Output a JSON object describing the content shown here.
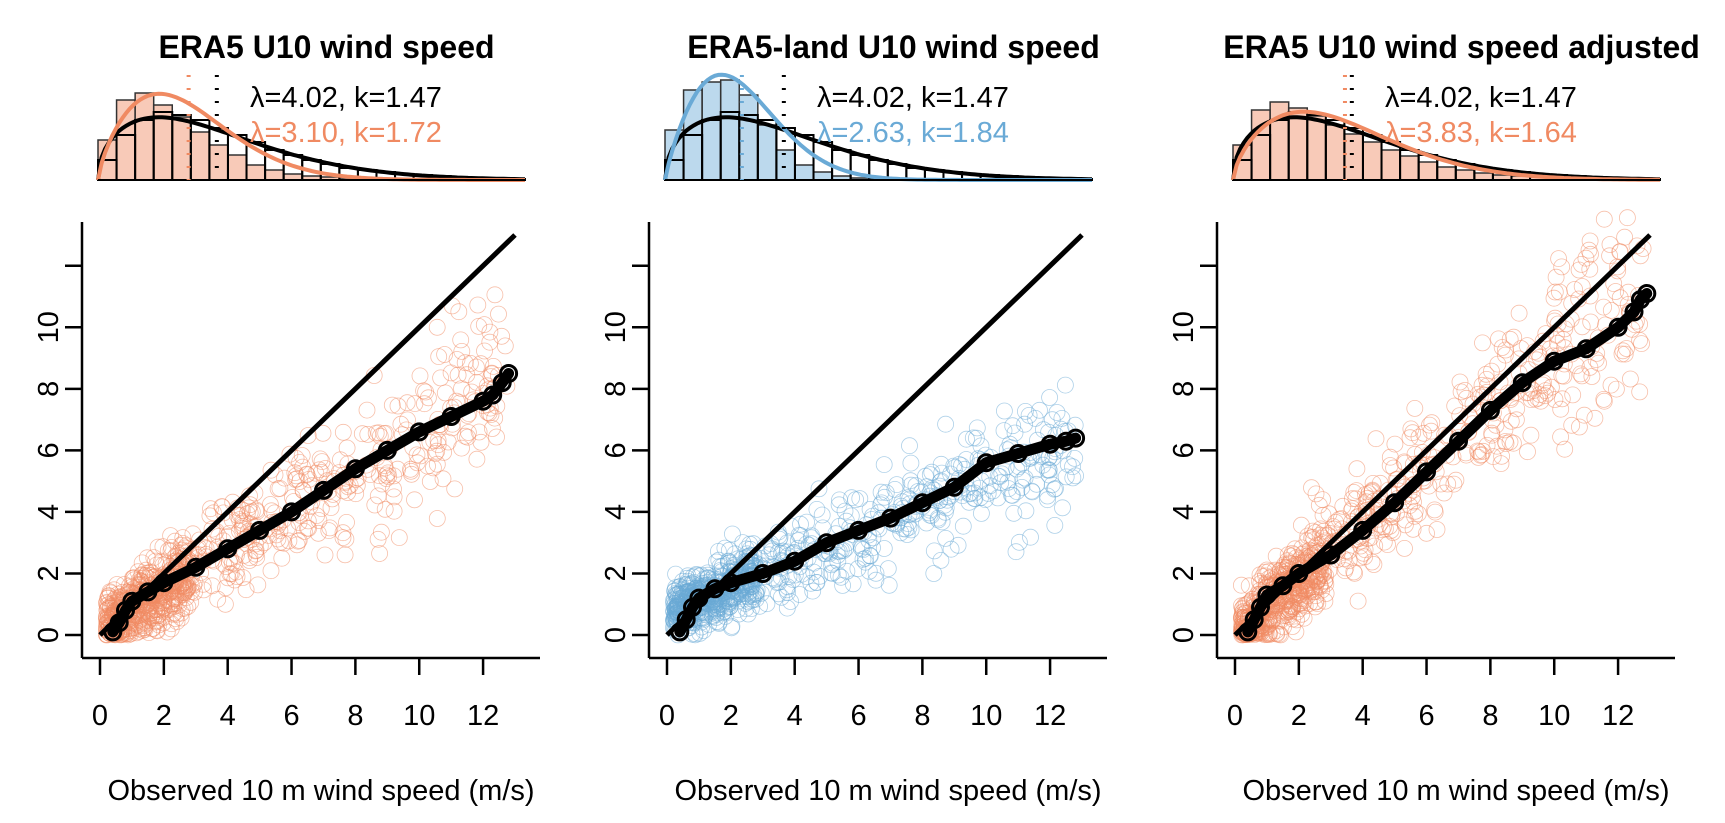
{
  "figure": {
    "xlabel": "Observed 10 m wind speed (m/s)",
    "observed_color": "#000000",
    "observed_weibull_label": "λ=4.02, k=1.47"
  },
  "chart_data": [
    {
      "type": "scatter",
      "title": "ERA5 U10 wind speed",
      "color": "#f08a62",
      "xlabel": "Observed 10 m wind speed (m/s)",
      "ylabel": "",
      "xlim": [
        0,
        13
      ],
      "ylim": [
        0,
        13
      ],
      "x_ticks": [
        "0",
        "2",
        "4",
        "6",
        "8",
        "10",
        "12"
      ],
      "y_ticks": [
        "0",
        "2",
        "4",
        "6",
        "8",
        "10"
      ],
      "identity_line": [
        [
          0,
          0
        ],
        [
          13,
          13
        ]
      ],
      "qq_points": [
        [
          0.4,
          0.1
        ],
        [
          0.6,
          0.4
        ],
        [
          0.8,
          0.8
        ],
        [
          1,
          1.1
        ],
        [
          1.5,
          1.4
        ],
        [
          2,
          1.7
        ],
        [
          3,
          2.2
        ],
        [
          4,
          2.8
        ],
        [
          5,
          3.4
        ],
        [
          6,
          4
        ],
        [
          7,
          4.7
        ],
        [
          8,
          5.4
        ],
        [
          9,
          6
        ],
        [
          10,
          6.6
        ],
        [
          11,
          7.1
        ],
        [
          12,
          7.6
        ],
        [
          12.3,
          7.8
        ],
        [
          12.6,
          8.2
        ],
        [
          12.8,
          8.5
        ]
      ],
      "scatter_trend": {
        "slope": 0.64,
        "intercept": 0.2,
        "spread": 0.9
      },
      "histogram_observed": [
        0.2,
        0.45,
        0.6,
        0.68,
        0.65,
        0.6,
        0.52,
        0.45,
        0.38,
        0.3,
        0.25,
        0.2,
        0.16,
        0.12,
        0.1,
        0.08,
        0.06,
        0.05,
        0.04,
        0.03,
        0.02,
        0.02,
        0.01
      ],
      "histogram_model": [
        0.4,
        0.8,
        0.87,
        0.75,
        0.63,
        0.48,
        0.35,
        0.25,
        0.15,
        0.1,
        0.06,
        0.04,
        0.03,
        0.02,
        0.01,
        0.01,
        0,
        0,
        0,
        0,
        0,
        0,
        0
      ],
      "weibull_observed": {
        "lambda": 4.02,
        "k": 1.47
      },
      "weibull_model": {
        "lambda": 3.1,
        "k": 1.72
      },
      "weibull_model_label": "λ=3.10, k=1.72"
    },
    {
      "type": "scatter",
      "title": "ERA5-land U10 wind speed",
      "color": "#6aaad6",
      "xlabel": "Observed 10 m wind speed (m/s)",
      "ylabel": "",
      "xlim": [
        0,
        13
      ],
      "ylim": [
        0,
        13
      ],
      "x_ticks": [
        "0",
        "2",
        "4",
        "6",
        "8",
        "10",
        "12"
      ],
      "y_ticks": [
        "0",
        "2",
        "4",
        "6",
        "8",
        "10"
      ],
      "identity_line": [
        [
          0,
          0
        ],
        [
          13,
          13
        ]
      ],
      "qq_points": [
        [
          0.4,
          0.1
        ],
        [
          0.6,
          0.5
        ],
        [
          0.8,
          0.9
        ],
        [
          1,
          1.2
        ],
        [
          1.5,
          1.5
        ],
        [
          2,
          1.7
        ],
        [
          3,
          2
        ],
        [
          4,
          2.4
        ],
        [
          5,
          3
        ],
        [
          6,
          3.4
        ],
        [
          7,
          3.8
        ],
        [
          8,
          4.3
        ],
        [
          9,
          4.8
        ],
        [
          10,
          5.6
        ],
        [
          11,
          5.9
        ],
        [
          12,
          6.2
        ],
        [
          12.5,
          6.3
        ],
        [
          12.8,
          6.4
        ]
      ],
      "scatter_trend": {
        "slope": 0.44,
        "intercept": 0.7,
        "spread": 0.75
      },
      "histogram_observed": [
        0.2,
        0.45,
        0.6,
        0.68,
        0.65,
        0.6,
        0.52,
        0.45,
        0.38,
        0.3,
        0.25,
        0.2,
        0.16,
        0.12,
        0.1,
        0.08,
        0.06,
        0.05,
        0.04,
        0.03,
        0.02,
        0.02,
        0.01
      ],
      "histogram_model": [
        0.5,
        0.9,
        0.98,
        1.0,
        0.85,
        0.55,
        0.3,
        0.15,
        0.08,
        0.04,
        0.02,
        0.01,
        0,
        0,
        0,
        0,
        0,
        0,
        0,
        0,
        0,
        0,
        0
      ],
      "weibull_observed": {
        "lambda": 4.02,
        "k": 1.47
      },
      "weibull_model": {
        "lambda": 2.63,
        "k": 1.84
      },
      "weibull_model_label": "λ=2.63, k=1.84"
    },
    {
      "type": "scatter",
      "title": "ERA5 U10 wind speed adjusted",
      "color": "#f08a62",
      "xlabel": "Observed 10 m wind speed (m/s)",
      "ylabel": "",
      "xlim": [
        0,
        13
      ],
      "ylim": [
        0,
        13
      ],
      "x_ticks": [
        "0",
        "2",
        "4",
        "6",
        "8",
        "10",
        "12"
      ],
      "y_ticks": [
        "0",
        "2",
        "4",
        "6",
        "8",
        "10"
      ],
      "identity_line": [
        [
          0,
          0
        ],
        [
          13,
          13
        ]
      ],
      "qq_points": [
        [
          0.4,
          0.1
        ],
        [
          0.6,
          0.5
        ],
        [
          0.8,
          0.9
        ],
        [
          1,
          1.3
        ],
        [
          1.5,
          1.6
        ],
        [
          2,
          2
        ],
        [
          3,
          2.6
        ],
        [
          4,
          3.4
        ],
        [
          5,
          4.3
        ],
        [
          6,
          5.3
        ],
        [
          7,
          6.3
        ],
        [
          8,
          7.3
        ],
        [
          9,
          8.2
        ],
        [
          10,
          8.9
        ],
        [
          11,
          9.3
        ],
        [
          12,
          10
        ],
        [
          12.5,
          10.5
        ],
        [
          12.7,
          10.9
        ],
        [
          12.9,
          11.1
        ]
      ],
      "scatter_trend": {
        "slope": 0.88,
        "intercept": 0.0,
        "spread": 1.0
      },
      "histogram_observed": [
        0.2,
        0.45,
        0.6,
        0.68,
        0.65,
        0.6,
        0.52,
        0.45,
        0.38,
        0.3,
        0.25,
        0.2,
        0.16,
        0.12,
        0.1,
        0.08,
        0.06,
        0.05,
        0.04,
        0.03,
        0.02,
        0.02,
        0.01
      ],
      "histogram_model": [
        0.35,
        0.7,
        0.78,
        0.72,
        0.64,
        0.55,
        0.46,
        0.38,
        0.3,
        0.24,
        0.18,
        0.13,
        0.1,
        0.07,
        0.05,
        0.04,
        0.03,
        0.02,
        0.01,
        0.01,
        0,
        0,
        0
      ],
      "weibull_observed": {
        "lambda": 4.02,
        "k": 1.47
      },
      "weibull_model": {
        "lambda": 3.83,
        "k": 1.64
      },
      "weibull_model_label": "λ=3.83, k=1.64"
    }
  ]
}
